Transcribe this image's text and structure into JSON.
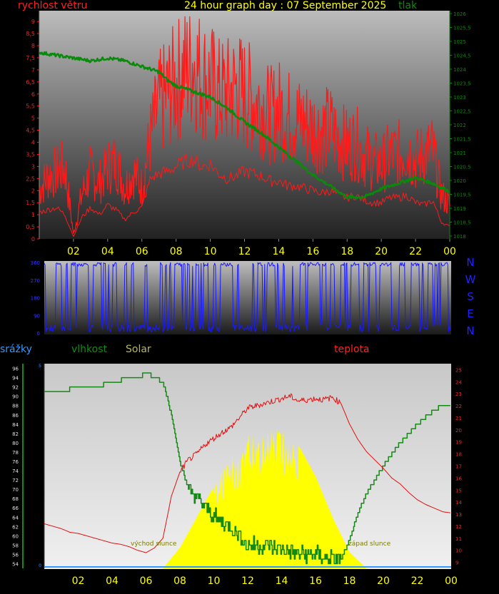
{
  "title": "24 hour graph day : 07 September 2025",
  "colors": {
    "wind": "#ff1a1a",
    "pressure": "#0a8a0a",
    "direction": "#1a1aff",
    "humidity": "#138a13",
    "temperature": "#e01010",
    "solar": "#ffff00",
    "rain": "#3399ff",
    "hour_labels": "#ffff00"
  },
  "hour_labels": [
    "02",
    "04",
    "06",
    "08",
    "10",
    "12",
    "14",
    "16",
    "18",
    "20",
    "22",
    "00"
  ],
  "chart_data": [
    {
      "type": "line",
      "name": "wind-pressure",
      "left_axis_label": "rychlost větru",
      "right_axis_label": "tlak",
      "wind_ticks": [
        "0",
        "0,5",
        "1",
        "1,5",
        "2",
        "2,5",
        "3",
        "3,5",
        "4",
        "4,5",
        "5",
        "5,5",
        "6",
        "6,5",
        "7",
        "7,5",
        "8",
        "8,5",
        "9"
      ],
      "pressure_ticks": [
        "1018",
        "1018,5",
        "1019",
        "1019,5",
        "1020",
        "1020,5",
        "1021",
        "1021,5",
        "1022",
        "1022,5",
        "1023",
        "1023,5",
        "1024",
        "1024,5",
        "1025",
        "1025,5",
        "1026"
      ],
      "wind_ylim": [
        0,
        9.3
      ],
      "pressure_ylim": [
        1018,
        1026
      ],
      "xlim": [
        0,
        24
      ],
      "series": [
        {
          "name": "gust",
          "x": [
            0,
            0.5,
            1,
            1.5,
            2,
            2.5,
            3,
            3.5,
            4,
            4.5,
            5,
            5.5,
            6,
            6.5,
            7,
            7.5,
            8,
            8.5,
            9,
            9.5,
            10,
            10.5,
            11,
            11.5,
            12,
            12.5,
            13,
            13.5,
            14,
            14.5,
            15,
            15.5,
            16,
            16.5,
            17,
            17.5,
            18,
            18.5,
            19,
            19.5,
            20,
            20.5,
            21,
            21.5,
            22,
            22.5,
            23,
            23.5,
            24
          ],
          "values": [
            2.2,
            2.8,
            3.0,
            3.2,
            0.2,
            2.0,
            3.0,
            2.5,
            3.2,
            3.5,
            2.3,
            3.0,
            2.3,
            4.5,
            6.0,
            6.5,
            7.0,
            7.5,
            8.0,
            7.2,
            7.0,
            6.5,
            6.5,
            6.8,
            6.5,
            6.2,
            6.0,
            5.5,
            5.8,
            5.5,
            5.3,
            5.2,
            5.0,
            4.8,
            5.0,
            4.5,
            4.2,
            4.3,
            3.8,
            3.5,
            3.3,
            3.8,
            3.8,
            4.0,
            3.5,
            3.8,
            4.0,
            2.0,
            1.5
          ]
        },
        {
          "name": "average",
          "x": [
            0,
            0.5,
            1,
            1.5,
            2,
            2.5,
            3,
            3.5,
            4,
            4.5,
            5,
            5.5,
            6,
            6.5,
            7,
            7.5,
            8,
            8.5,
            9,
            9.5,
            10,
            10.5,
            11,
            11.5,
            12,
            12.5,
            13,
            13.5,
            14,
            14.5,
            15,
            15.5,
            16,
            16.5,
            17,
            17.5,
            18,
            18.5,
            19,
            19.5,
            20,
            20.5,
            21,
            21.5,
            22,
            22.5,
            23,
            23.5,
            24
          ],
          "values": [
            1.1,
            1.2,
            1.3,
            1.0,
            0.1,
            0.9,
            1.3,
            1.0,
            1.4,
            1.2,
            0.8,
            1.1,
            1.3,
            2.5,
            2.7,
            2.8,
            3.0,
            3.2,
            3.3,
            3.0,
            3.1,
            2.7,
            2.5,
            2.6,
            2.8,
            2.7,
            2.6,
            2.4,
            2.4,
            2.2,
            2.2,
            2.1,
            2.0,
            1.9,
            2.0,
            1.8,
            1.7,
            1.8,
            1.6,
            1.5,
            1.5,
            1.7,
            1.7,
            1.8,
            1.5,
            1.4,
            1.6,
            0.7,
            0.5
          ]
        },
        {
          "name": "pressure",
          "x": [
            0,
            1,
            2,
            3,
            4,
            5,
            6,
            7,
            7.5,
            8,
            9,
            10,
            11,
            12,
            13,
            14,
            15,
            16,
            17,
            18,
            19,
            20,
            21,
            22,
            23,
            24
          ],
          "values": [
            1024.6,
            1024.5,
            1024.4,
            1024.3,
            1024.4,
            1024.3,
            1024.1,
            1023.9,
            1023.6,
            1023.4,
            1023.2,
            1023.0,
            1022.6,
            1022.1,
            1021.7,
            1021.2,
            1020.7,
            1020.2,
            1019.8,
            1019.4,
            1019.4,
            1019.7,
            1019.9,
            1020.1,
            1019.9,
            1019.6
          ]
        }
      ]
    },
    {
      "type": "line",
      "name": "wind-direction",
      "direction_ticks": [
        "0",
        "90",
        "180",
        "270",
        "360"
      ],
      "compass": [
        "N",
        "W",
        "S",
        "E",
        "N"
      ],
      "ylim": [
        0,
        360
      ],
      "xlim": [
        0,
        24
      ],
      "series": [
        {
          "name": "direction",
          "x": [
            0,
            1,
            2,
            3,
            4,
            5,
            6,
            7,
            8,
            9,
            10,
            11,
            12,
            13,
            14,
            15,
            16,
            17,
            18,
            19,
            20,
            21,
            22,
            23,
            24
          ],
          "values": [
            20,
            355,
            15,
            350,
            10,
            345,
            20,
            355,
            30,
            20,
            15,
            10,
            25,
            30,
            20,
            15,
            10,
            25,
            20,
            15,
            10,
            345,
            355,
            20,
            15
          ]
        }
      ]
    },
    {
      "type": "line",
      "name": "humidity-temperature",
      "rain_label": "srážky",
      "humidity_label": "vlhkost",
      "solar_label": "Solar",
      "temperature_label": "teplota",
      "sunrise_label": "východ slunce",
      "sunset_label": "západ slunce",
      "humidity_ticks": [
        "54",
        "56",
        "58",
        "60",
        "62",
        "64",
        "66",
        "68",
        "70",
        "72",
        "74",
        "76",
        "78",
        "80",
        "82",
        "84",
        "86",
        "88",
        "90",
        "92",
        "94",
        "96"
      ],
      "temperature_ticks": [
        "9",
        "10",
        "11",
        "12",
        "13",
        "14",
        "15",
        "16",
        "17",
        "18",
        "19",
        "20",
        "21",
        "22",
        "23",
        "24",
        "25"
      ],
      "rain_ticks": [
        "0",
        "5"
      ],
      "humidity_ylim": [
        53,
        97
      ],
      "temperature_ylim": [
        8.5,
        25.5
      ],
      "xlim": [
        0,
        24
      ],
      "series": [
        {
          "name": "humidity",
          "x": [
            0,
            1,
            2,
            2.5,
            3,
            4,
            5,
            5.5,
            6,
            6.5,
            7,
            7.5,
            8,
            8.5,
            9,
            10,
            11,
            11.5,
            12,
            13,
            14,
            15,
            16,
            17,
            17.5,
            18,
            18.5,
            19,
            20,
            21,
            22,
            23,
            23.5,
            24
          ],
          "values": [
            91,
            91,
            92,
            92,
            92,
            93,
            94,
            94,
            95,
            94,
            93,
            86,
            76,
            70,
            68,
            64,
            62,
            60,
            58,
            58,
            57,
            56,
            56,
            55,
            55,
            59,
            65,
            69,
            75,
            80,
            84,
            87,
            88,
            88
          ]
        },
        {
          "name": "temperature",
          "x": [
            0,
            0.5,
            1,
            1.5,
            2,
            2.5,
            3,
            3.5,
            4,
            4.5,
            5,
            5.5,
            6,
            6.5,
            7,
            7.5,
            8,
            8.5,
            9,
            9.5,
            10,
            10.5,
            11,
            11.5,
            12,
            12.5,
            13,
            13.5,
            14,
            14.5,
            15,
            15.5,
            16,
            16.5,
            17,
            17.5,
            18,
            18.5,
            19,
            19.5,
            20,
            20.5,
            21,
            21.5,
            22,
            22.5,
            23,
            23.5,
            24
          ],
          "values": [
            12.2,
            12.0,
            11.8,
            11.5,
            11.4,
            11.2,
            11.0,
            10.8,
            10.6,
            10.5,
            10.3,
            10.0,
            9.8,
            10.2,
            11.0,
            14.5,
            16.5,
            17.5,
            18.0,
            18.8,
            19.3,
            19.8,
            20.2,
            21.0,
            21.8,
            22.0,
            22.2,
            22.4,
            22.6,
            22.8,
            22.4,
            22.5,
            22.6,
            22.5,
            22.7,
            22.2,
            20.5,
            19.2,
            18.2,
            17.5,
            16.8,
            16.0,
            15.5,
            14.8,
            14.2,
            13.8,
            13.5,
            13.2,
            13.1
          ]
        },
        {
          "name": "solar",
          "x": [
            7,
            8,
            9,
            10,
            11,
            12,
            13,
            14,
            15,
            16,
            17,
            18,
            19
          ],
          "values": [
            0,
            10,
            25,
            40,
            55,
            65,
            70,
            68,
            60,
            45,
            25,
            8,
            0
          ]
        },
        {
          "name": "rain",
          "x": [
            0,
            24
          ],
          "values": [
            0,
            0
          ]
        }
      ]
    }
  ]
}
